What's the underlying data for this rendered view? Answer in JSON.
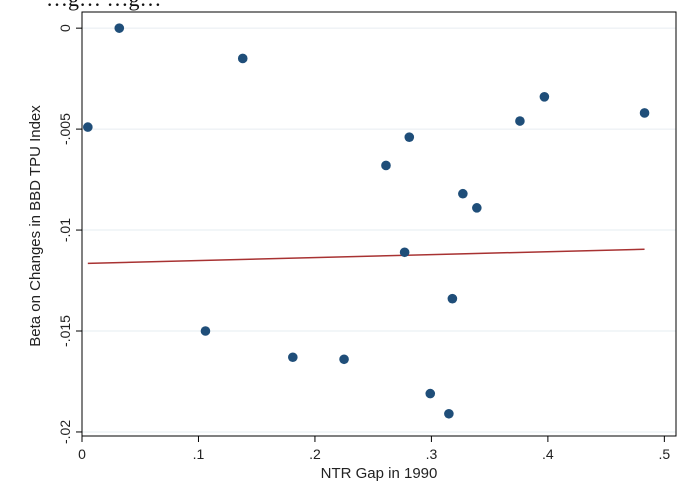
{
  "figure": {
    "cropped_heading": "…g…         …g…"
  },
  "chart_data": {
    "type": "scatter",
    "xlabel": "NTR Gap in 1990",
    "ylabel": "Beta on Changes in BBD TPU Index",
    "xlim": [
      0,
      0.51
    ],
    "ylim": [
      -0.0202,
      0.0008
    ],
    "x_ticks": [
      0,
      0.1,
      0.2,
      0.3,
      0.4,
      0.5
    ],
    "x_tick_labels": [
      "0",
      ".1",
      ".2",
      ".3",
      ".4",
      ".5"
    ],
    "y_ticks": [
      0,
      -0.005,
      -0.01,
      -0.015,
      -0.02
    ],
    "y_tick_labels": [
      "0",
      "-.005",
      "-.01",
      "-.015",
      "-.02"
    ],
    "grid": "horizontal",
    "points": [
      {
        "x": 0.005,
        "y": -0.0049
      },
      {
        "x": 0.032,
        "y": 0.0
      },
      {
        "x": 0.106,
        "y": -0.015
      },
      {
        "x": 0.138,
        "y": -0.0015
      },
      {
        "x": 0.181,
        "y": -0.0163
      },
      {
        "x": 0.225,
        "y": -0.0164
      },
      {
        "x": 0.261,
        "y": -0.0068
      },
      {
        "x": 0.277,
        "y": -0.0111
      },
      {
        "x": 0.281,
        "y": -0.0054
      },
      {
        "x": 0.299,
        "y": -0.0181
      },
      {
        "x": 0.315,
        "y": -0.0191
      },
      {
        "x": 0.318,
        "y": -0.0134
      },
      {
        "x": 0.327,
        "y": -0.0082
      },
      {
        "x": 0.339,
        "y": -0.0089
      },
      {
        "x": 0.376,
        "y": -0.0046
      },
      {
        "x": 0.397,
        "y": -0.0034
      },
      {
        "x": 0.483,
        "y": -0.0042
      }
    ],
    "fit_line": {
      "x": [
        0.005,
        0.483
      ],
      "y": [
        -0.01165,
        -0.01095
      ]
    },
    "colors": {
      "points": "#1f4e79",
      "fit_line": "#a83232",
      "grid": "#e6ecf0",
      "frame": "#000000"
    }
  }
}
